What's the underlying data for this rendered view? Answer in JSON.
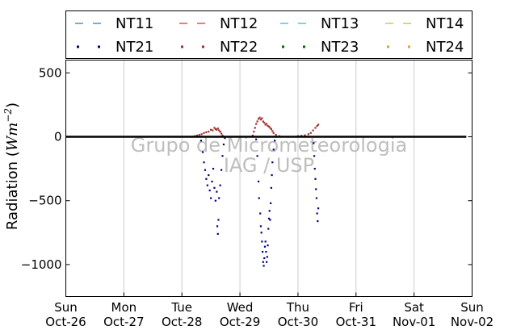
{
  "chart_data": {
    "type": "scatter",
    "ylabel_prefix": "Radiation (",
    "ylabel_math": "Wm",
    "ylabel_exp": "−2",
    "ylabel_suffix": ")",
    "ylim": [
      -1250,
      600
    ],
    "yticks": [
      500,
      0,
      -500,
      -1000
    ],
    "ytick_labels": [
      "500",
      "0",
      "−500",
      "−1000"
    ],
    "x_range_days": [
      "2014-10-26",
      "2014-11-02"
    ],
    "xtick_labels": [
      {
        "day": "Sun",
        "date": "Oct-26"
      },
      {
        "day": "Mon",
        "date": "Oct-27"
      },
      {
        "day": "Tue",
        "date": "Oct-28"
      },
      {
        "day": "Wed",
        "date": "Oct-29"
      },
      {
        "day": "Thu",
        "date": "Oct-30"
      },
      {
        "day": "Fri",
        "date": "Oct-31"
      },
      {
        "day": "Sat",
        "date": "Nov-01"
      },
      {
        "day": "Sun",
        "date": "Nov-02"
      }
    ],
    "grid": "vertical",
    "legend_position": "top",
    "watermark": [
      "Grupo de Micrometeorologia",
      "IAG / USP"
    ],
    "legend": [
      {
        "name": "NT11",
        "style": "dashed",
        "color": "#1f77b4"
      },
      {
        "name": "NT12",
        "style": "dashed",
        "color": "#d62728"
      },
      {
        "name": "NT13",
        "style": "dashed",
        "color": "#17becf"
      },
      {
        "name": "NT14",
        "style": "dashed",
        "color": "#bcbd22"
      },
      {
        "name": "NT21",
        "style": "dotted",
        "color": "#000080"
      },
      {
        "name": "NT22",
        "style": "dotted",
        "color": "#a52a2a"
      },
      {
        "name": "NT23",
        "style": "dotted",
        "color": "#006400"
      },
      {
        "name": "NT24",
        "style": "dotted",
        "color": "#daa520"
      }
    ],
    "series": [
      {
        "name": "NT11",
        "color": "#1f77b4",
        "points": [
          [
            0,
            0
          ],
          [
            3.2,
            0
          ],
          [
            6.9,
            0
          ]
        ]
      },
      {
        "name": "NT21",
        "color": "#000080",
        "points": [
          [
            2.33,
            -30
          ],
          [
            2.36,
            -120
          ],
          [
            2.38,
            -200
          ],
          [
            2.4,
            -260
          ],
          [
            2.42,
            -330
          ],
          [
            2.44,
            -380
          ],
          [
            2.46,
            -300
          ],
          [
            2.48,
            -420
          ],
          [
            2.5,
            -480
          ],
          [
            2.52,
            -350
          ],
          [
            2.54,
            -250
          ],
          [
            2.56,
            -400
          ],
          [
            2.58,
            -500
          ],
          [
            2.6,
            -430
          ],
          [
            2.61,
            -700
          ],
          [
            2.62,
            -760
          ],
          [
            2.63,
            -650
          ],
          [
            2.64,
            -480
          ],
          [
            2.66,
            -380
          ],
          [
            2.68,
            -260
          ],
          [
            2.7,
            -150
          ],
          [
            2.72,
            -60
          ],
          [
            2.74,
            -10
          ],
          [
            3.28,
            -20
          ],
          [
            3.3,
            -150
          ],
          [
            3.32,
            -350
          ],
          [
            3.33,
            -480
          ],
          [
            3.35,
            -600
          ],
          [
            3.36,
            -700
          ],
          [
            3.37,
            -750
          ],
          [
            3.38,
            -820
          ],
          [
            3.39,
            -900
          ],
          [
            3.4,
            -980
          ],
          [
            3.41,
            -1010
          ],
          [
            3.42,
            -950
          ],
          [
            3.43,
            -860
          ],
          [
            3.44,
            -820
          ],
          [
            3.45,
            -900
          ],
          [
            3.46,
            -980
          ],
          [
            3.47,
            -940
          ],
          [
            3.48,
            -850
          ],
          [
            3.49,
            -720
          ],
          [
            3.5,
            -640
          ],
          [
            3.51,
            -580
          ],
          [
            3.52,
            -650
          ],
          [
            3.53,
            -520
          ],
          [
            3.54,
            -400
          ],
          [
            3.55,
            -300
          ],
          [
            3.56,
            -200
          ],
          [
            3.58,
            -100
          ],
          [
            3.6,
            -30
          ],
          [
            4.27,
            -50
          ],
          [
            4.28,
            -150
          ],
          [
            4.29,
            -250
          ],
          [
            4.3,
            -330
          ],
          [
            4.31,
            -410
          ],
          [
            4.32,
            -480
          ],
          [
            4.33,
            -600
          ],
          [
            4.34,
            -660
          ],
          [
            4.35,
            -560
          ]
        ]
      },
      {
        "name": "NT22",
        "color": "#a52a2a",
        "points": [
          [
            2.18,
            0
          ],
          [
            2.22,
            5
          ],
          [
            2.26,
            10
          ],
          [
            2.3,
            15
          ],
          [
            2.34,
            20
          ],
          [
            2.38,
            30
          ],
          [
            2.42,
            35
          ],
          [
            2.46,
            40
          ],
          [
            2.5,
            55
          ],
          [
            2.53,
            50
          ],
          [
            2.56,
            70
          ],
          [
            2.58,
            60
          ],
          [
            2.6,
            55
          ],
          [
            2.62,
            65
          ],
          [
            2.64,
            50
          ],
          [
            2.66,
            40
          ],
          [
            2.68,
            25
          ],
          [
            2.7,
            10
          ],
          [
            2.74,
            0
          ],
          [
            3.22,
            10
          ],
          [
            3.24,
            40
          ],
          [
            3.26,
            70
          ],
          [
            3.28,
            100
          ],
          [
            3.3,
            120
          ],
          [
            3.32,
            140
          ],
          [
            3.34,
            150
          ],
          [
            3.36,
            135
          ],
          [
            3.38,
            145
          ],
          [
            3.4,
            120
          ],
          [
            3.42,
            110
          ],
          [
            3.44,
            95
          ],
          [
            3.46,
            100
          ],
          [
            3.48,
            85
          ],
          [
            3.5,
            80
          ],
          [
            3.52,
            70
          ],
          [
            3.54,
            60
          ],
          [
            3.56,
            45
          ],
          [
            3.58,
            30
          ],
          [
            3.62,
            15
          ],
          [
            3.68,
            5
          ],
          [
            4.0,
            5
          ],
          [
            4.06,
            8
          ],
          [
            4.12,
            12
          ],
          [
            4.18,
            20
          ],
          [
            4.22,
            30
          ],
          [
            4.26,
            50
          ],
          [
            4.3,
            70
          ],
          [
            4.33,
            85
          ],
          [
            4.35,
            95
          ]
        ]
      }
    ]
  }
}
